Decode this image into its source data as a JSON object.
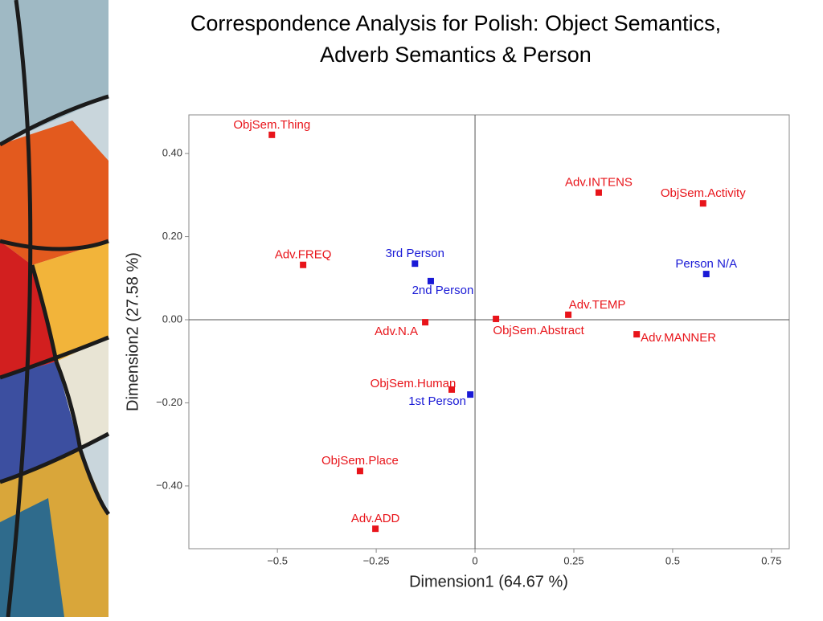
{
  "chart_data": {
    "type": "scatter",
    "title": "Correspondence Analysis for Polish: Object Semantics, Adverb Semantics & Person",
    "x_label": "Dimension1 (64.67 %)",
    "y_label": "Dimension2 (27.58 %)",
    "xlim": [
      -0.724,
      0.795
    ],
    "ylim": [
      -0.551,
      0.493
    ],
    "xticks": [
      {
        "value": -0.5,
        "label": "−0.5"
      },
      {
        "value": -0.25,
        "label": "−0.25"
      },
      0,
      0.25,
      0.5,
      0.75
    ],
    "yticks": [
      {
        "value": 0.4,
        "label": "0.40"
      },
      {
        "value": 0.2,
        "label": "0.20"
      },
      {
        "value": 0,
        "label": "0.00"
      },
      {
        "value": -0.2,
        "label": "−0.20"
      },
      {
        "value": -0.4,
        "label": "−0.40"
      }
    ],
    "points": [
      {
        "label": "ObjSem.Thing",
        "x": -0.514,
        "y": 0.445,
        "color": "#e8141a"
      },
      {
        "label": "Adv.INTENS",
        "x": 0.313,
        "y": 0.306,
        "color": "#e8141a"
      },
      {
        "label": "ObjSem.Activity",
        "x": 0.577,
        "y": 0.28,
        "color": "#e8141a"
      },
      {
        "label": "Adv.FREQ",
        "x": -0.435,
        "y": 0.132,
        "color": "#e8141a"
      },
      {
        "label": "3rd Person",
        "x": -0.152,
        "y": 0.135,
        "color": "#1a1ad6"
      },
      {
        "label": "2nd Person",
        "x": -0.112,
        "y": 0.093,
        "color": "#1a1ad6"
      },
      {
        "label": "Person N/A",
        "x": 0.585,
        "y": 0.11,
        "color": "#1a1ad6"
      },
      {
        "label": "Adv.TEMP",
        "x": 0.236,
        "y": 0.012,
        "color": "#e8141a"
      },
      {
        "label": "ObjSem.Abstract",
        "x": 0.053,
        "y": 0.002,
        "color": "#e8141a"
      },
      {
        "label": "Adv.N.A",
        "x": -0.126,
        "y": -0.006,
        "color": "#e8141a"
      },
      {
        "label": "Adv.MANNER",
        "x": 0.409,
        "y": -0.035,
        "color": "#e8141a"
      },
      {
        "label": "ObjSem.Human",
        "x": -0.059,
        "y": -0.168,
        "color": "#e8141a"
      },
      {
        "label": "1st Person",
        "x": -0.012,
        "y": -0.18,
        "color": "#1a1ad6"
      },
      {
        "label": "ObjSem.Place",
        "x": -0.291,
        "y": -0.364,
        "color": "#e8141a"
      },
      {
        "label": "Adv.ADD",
        "x": -0.252,
        "y": -0.503,
        "color": "#e8141a"
      }
    ]
  }
}
